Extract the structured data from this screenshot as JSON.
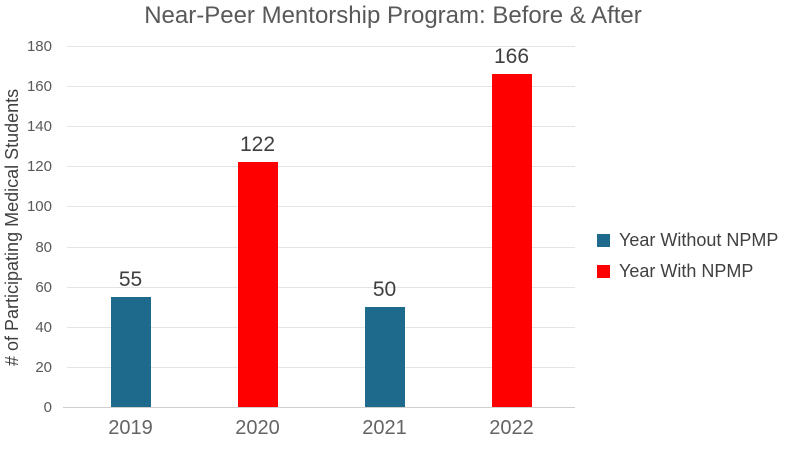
{
  "chart_data": {
    "type": "bar",
    "title": "Near-Peer Mentorship Program: Before & After",
    "categories": [
      "2019",
      "2020",
      "2021",
      "2022"
    ],
    "values": [
      55,
      122,
      50,
      166
    ],
    "data_labels": [
      "55",
      "122",
      "50",
      "166"
    ],
    "bar_series": [
      "Year Without NPMP",
      "Year With NPMP",
      "Year Without NPMP",
      "Year With NPMP"
    ],
    "bar_colors": [
      "#1E6A8C",
      "#FF0000",
      "#1E6A8C",
      "#FF0000"
    ],
    "xlabel": "",
    "ylabel": "# of Participating Medical Students",
    "ylim": [
      0,
      180
    ],
    "yticks": [
      0,
      20,
      40,
      60,
      80,
      100,
      120,
      140,
      160,
      180
    ],
    "grid": true,
    "legend": {
      "position": "right",
      "entries": [
        {
          "label": "Year Without NPMP",
          "color": "#1E6A8C"
        },
        {
          "label": "Year With NPMP",
          "color": "#FF0000"
        }
      ]
    }
  }
}
